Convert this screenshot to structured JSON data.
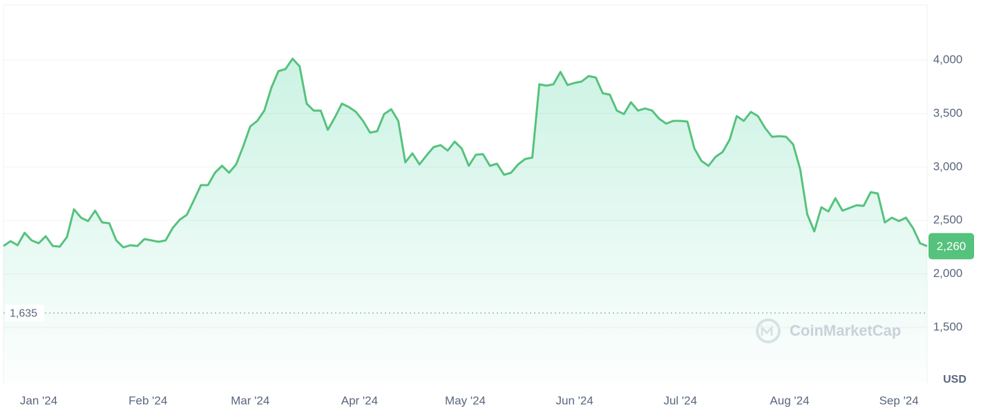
{
  "chart_data": {
    "type": "area-line",
    "series": [
      {
        "color": "#55c27d",
        "x": [
          -10,
          -8,
          -6,
          -4,
          -2,
          0,
          2,
          4,
          6,
          8,
          10,
          12,
          14,
          16,
          18,
          20,
          22,
          24,
          26,
          28,
          30,
          32,
          34,
          36,
          38,
          40,
          42,
          44,
          46,
          48,
          50,
          52,
          54,
          56,
          58,
          60,
          62,
          64,
          66,
          68,
          70,
          72,
          74,
          76,
          78,
          80,
          82,
          84,
          86,
          88,
          90,
          92,
          94,
          96,
          98,
          100,
          102,
          104,
          106,
          108,
          110,
          112,
          114,
          116,
          118,
          120,
          122,
          124,
          126,
          128,
          130,
          132,
          134,
          136,
          138,
          140,
          142,
          144,
          146,
          148,
          150,
          152,
          154,
          156,
          158,
          160,
          162,
          164,
          166,
          168,
          170,
          172,
          174,
          176,
          178,
          180,
          182,
          184,
          186,
          188,
          190,
          192,
          194,
          196,
          198,
          200,
          202,
          204,
          206,
          208,
          210,
          212,
          214,
          216,
          218,
          220,
          222,
          224,
          226,
          228,
          230,
          232,
          234,
          236,
          238,
          240,
          242,
          244,
          246,
          248,
          250,
          252
        ],
        "values": [
          2262,
          2307,
          2269,
          2385,
          2314,
          2288,
          2353,
          2262,
          2256,
          2346,
          2605,
          2527,
          2495,
          2592,
          2482,
          2475,
          2314,
          2249,
          2269,
          2262,
          2327,
          2314,
          2301,
          2314,
          2430,
          2508,
          2553,
          2689,
          2831,
          2831,
          2947,
          3012,
          2947,
          3025,
          3193,
          3380,
          3432,
          3528,
          3742,
          3897,
          3916,
          4013,
          3942,
          3593,
          3528,
          3528,
          3348,
          3464,
          3593,
          3561,
          3516,
          3432,
          3322,
          3335,
          3496,
          3541,
          3432,
          3044,
          3128,
          3025,
          3109,
          3186,
          3205,
          3154,
          3238,
          3173,
          3012,
          3115,
          3121,
          3012,
          3031,
          2928,
          2947,
          3025,
          3076,
          3089,
          3774,
          3761,
          3774,
          3890,
          3767,
          3787,
          3800,
          3851,
          3838,
          3690,
          3677,
          3528,
          3496,
          3606,
          3528,
          3548,
          3528,
          3451,
          3406,
          3432,
          3432,
          3425,
          3173,
          3057,
          3012,
          3096,
          3141,
          3257,
          3477,
          3432,
          3516,
          3477,
          3367,
          3283,
          3289,
          3283,
          3212,
          2979,
          2559,
          2398,
          2624,
          2585,
          2708,
          2592,
          2618,
          2643,
          2637,
          2766,
          2753,
          2482,
          2527,
          2495,
          2527,
          2430,
          2288,
          2260
        ]
      }
    ],
    "xlim": [
      -10,
      252
    ],
    "xticks": [
      {
        "value": 0,
        "label": "Jan '24"
      },
      {
        "value": 31,
        "label": "Feb '24"
      },
      {
        "value": 60,
        "label": "Mar '24"
      },
      {
        "value": 91,
        "label": "Apr '24"
      },
      {
        "value": 121,
        "label": "May '24"
      },
      {
        "value": 152,
        "label": "Jun '24"
      },
      {
        "value": 182,
        "label": "Jul '24"
      },
      {
        "value": 213,
        "label": "Aug '24"
      },
      {
        "value": 244,
        "label": "Sep '24"
      }
    ],
    "ylim": [
      977,
      4517
    ],
    "yticks": [
      {
        "value": 1500,
        "label": "1,500"
      },
      {
        "value": 2000,
        "label": "2,000"
      },
      {
        "value": 2500,
        "label": "2,500"
      },
      {
        "value": 3000,
        "label": "3,000"
      },
      {
        "value": 3500,
        "label": "3,500"
      },
      {
        "value": 4000,
        "label": "4,000"
      }
    ],
    "grid": true,
    "reference_line": {
      "value": 1635,
      "label": "1,635"
    },
    "current_price": {
      "value": 2260,
      "label": "2,260"
    },
    "unit_label": "USD",
    "watermark": "CoinMarketCap"
  }
}
